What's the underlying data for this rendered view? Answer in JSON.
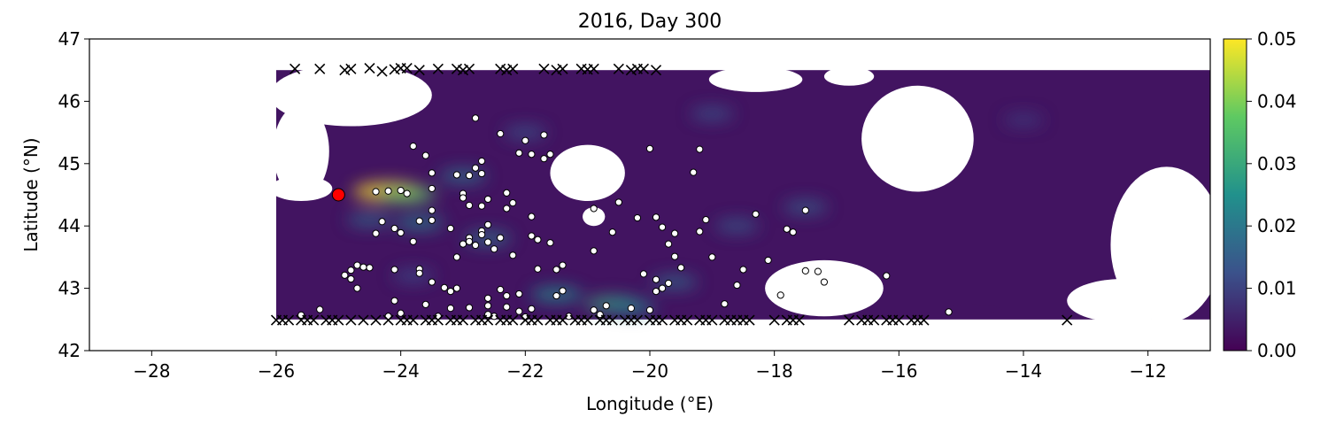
{
  "chart_data": {
    "type": "heatmap",
    "title": "2016, Day 300",
    "xlabel": "Longitude (°E)",
    "ylabel": "Latitude (°N)",
    "xlim": [
      -29,
      -11
    ],
    "ylim": [
      42,
      47
    ],
    "x_ticks": [
      -28,
      -26,
      -24,
      -22,
      -20,
      -18,
      -16,
      -14,
      -12
    ],
    "x_tick_labels": [
      "−28",
      "−26",
      "−24",
      "−22",
      "−20",
      "−18",
      "−16",
      "−14",
      "−12"
    ],
    "y_ticks": [
      42,
      43,
      44,
      45,
      46,
      47
    ],
    "y_tick_labels": [
      "42",
      "43",
      "44",
      "45",
      "46",
      "47"
    ],
    "colorbar": {
      "min": 0.0,
      "max": 0.05,
      "ticks": [
        0.0,
        0.01,
        0.02,
        0.03,
        0.04,
        0.05
      ],
      "tick_labels": [
        "0.00",
        "0.01",
        "0.02",
        "0.03",
        "0.04",
        "0.05"
      ],
      "colormap": "viridis",
      "colors": [
        "#440154",
        "#3b528b",
        "#21918c",
        "#5ec962",
        "#fde725"
      ]
    },
    "field_region": {
      "lon_range": [
        -26.0,
        -11.0
      ],
      "lat_range": [
        42.5,
        46.5
      ],
      "background_value": 0.003,
      "missing_color": "#ffffff"
    },
    "field_features": [
      {
        "lon": -24.2,
        "lat": 44.55,
        "value": 0.05
      },
      {
        "lon": -23.9,
        "lat": 44.5,
        "value": 0.035
      },
      {
        "lon": -24.5,
        "lat": 44.1,
        "value": 0.018
      },
      {
        "lon": -23.7,
        "lat": 44.05,
        "value": 0.022
      },
      {
        "lon": -23.0,
        "lat": 44.8,
        "value": 0.02
      },
      {
        "lon": -22.6,
        "lat": 43.8,
        "value": 0.02
      },
      {
        "lon": -23.8,
        "lat": 43.2,
        "value": 0.012
      },
      {
        "lon": -21.5,
        "lat": 42.9,
        "value": 0.025
      },
      {
        "lon": -20.6,
        "lat": 42.75,
        "value": 0.03
      },
      {
        "lon": -20.3,
        "lat": 42.7,
        "value": 0.022
      },
      {
        "lon": -19.6,
        "lat": 43.1,
        "value": 0.018
      },
      {
        "lon": -18.6,
        "lat": 44.0,
        "value": 0.015
      },
      {
        "lon": -17.5,
        "lat": 44.3,
        "value": 0.016
      },
      {
        "lon": -19.0,
        "lat": 45.8,
        "value": 0.014
      },
      {
        "lon": -14.0,
        "lat": 45.7,
        "value": 0.01
      },
      {
        "lon": -22.0,
        "lat": 45.5,
        "value": 0.014
      }
    ],
    "masked_regions": [
      {
        "lon": -21.0,
        "lat": 44.85,
        "rx": 0.6,
        "ry": 0.45
      },
      {
        "lon": -20.9,
        "lat": 44.15,
        "rx": 0.18,
        "ry": 0.15
      },
      {
        "lon": -17.2,
        "lat": 43.0,
        "rx": 0.95,
        "ry": 0.45
      },
      {
        "lon": -15.7,
        "lat": 45.4,
        "rx": 0.9,
        "ry": 0.85
      },
      {
        "lon": -18.3,
        "lat": 46.35,
        "rx": 0.75,
        "ry": 0.2
      },
      {
        "lon": -16.8,
        "lat": 46.4,
        "rx": 0.4,
        "ry": 0.15
      },
      {
        "lon": -24.8,
        "lat": 46.1,
        "rx": 1.3,
        "ry": 0.5
      },
      {
        "lon": -25.6,
        "lat": 45.2,
        "rx": 0.45,
        "ry": 0.75
      },
      {
        "lon": -25.6,
        "lat": 44.6,
        "rx": 0.5,
        "ry": 0.2
      },
      {
        "lon": -11.7,
        "lat": 43.7,
        "rx": 0.9,
        "ry": 1.25
      },
      {
        "lon": -12.4,
        "lat": 42.8,
        "rx": 0.9,
        "ry": 0.35
      }
    ],
    "extra_patches": [
      {
        "lon": -14.8,
        "lat": 42.66,
        "rx": 0.45,
        "ry": 0.08
      }
    ],
    "series": [
      {
        "marker": "circle",
        "color": "#ffffff",
        "edge": "#000000",
        "points": [
          [
            -22.8,
            45.73
          ],
          [
            -22.4,
            45.48
          ],
          [
            -21.7,
            45.46
          ],
          [
            -23.8,
            45.28
          ],
          [
            -22.0,
            45.37
          ],
          [
            -22.1,
            45.17
          ],
          [
            -21.9,
            45.15
          ],
          [
            -21.6,
            45.15
          ],
          [
            -21.7,
            45.08
          ],
          [
            -23.6,
            45.13
          ],
          [
            -20.0,
            45.24
          ],
          [
            -19.2,
            45.23
          ],
          [
            -22.7,
            45.04
          ],
          [
            -22.8,
            44.93
          ],
          [
            -22.7,
            44.84
          ],
          [
            -23.5,
            44.85
          ],
          [
            -23.1,
            44.82
          ],
          [
            -22.9,
            44.81
          ],
          [
            -19.3,
            44.86
          ],
          [
            -23.5,
            44.6
          ],
          [
            -23.0,
            44.52
          ],
          [
            -22.3,
            44.53
          ],
          [
            -24.0,
            44.57
          ],
          [
            -24.2,
            44.56
          ],
          [
            -24.4,
            44.55
          ],
          [
            -23.9,
            44.52
          ],
          [
            -23.0,
            44.45
          ],
          [
            -22.6,
            44.43
          ],
          [
            -22.2,
            44.37
          ],
          [
            -22.9,
            44.33
          ],
          [
            -22.7,
            44.32
          ],
          [
            -23.5,
            44.25
          ],
          [
            -20.5,
            44.38
          ],
          [
            -20.9,
            44.28
          ],
          [
            -22.3,
            44.28
          ],
          [
            -19.1,
            44.1
          ],
          [
            -23.7,
            44.08
          ],
          [
            -23.5,
            44.09
          ],
          [
            -22.6,
            44.02
          ],
          [
            -23.2,
            43.96
          ],
          [
            -22.7,
            43.92
          ],
          [
            -21.9,
            44.15
          ],
          [
            -19.9,
            44.14
          ],
          [
            -20.2,
            44.13
          ],
          [
            -24.3,
            44.07
          ],
          [
            -22.7,
            43.86
          ],
          [
            -22.9,
            43.81
          ],
          [
            -22.9,
            43.75
          ],
          [
            -22.4,
            43.81
          ],
          [
            -22.6,
            43.74
          ],
          [
            -22.8,
            43.69
          ],
          [
            -21.9,
            43.84
          ],
          [
            -21.8,
            43.78
          ],
          [
            -24.1,
            43.96
          ],
          [
            -24.0,
            43.89
          ],
          [
            -24.4,
            43.88
          ],
          [
            -23.8,
            43.75
          ],
          [
            -22.2,
            43.53
          ],
          [
            -23.0,
            43.71
          ],
          [
            -22.5,
            43.63
          ],
          [
            -23.1,
            43.5
          ],
          [
            -21.6,
            43.73
          ],
          [
            -20.6,
            43.9
          ],
          [
            -19.7,
            43.71
          ],
          [
            -19.2,
            43.91
          ],
          [
            -19.8,
            43.98
          ],
          [
            -19.6,
            43.88
          ],
          [
            -20.9,
            43.6
          ],
          [
            -17.7,
            43.9
          ],
          [
            -17.8,
            43.95
          ],
          [
            -18.1,
            43.45
          ],
          [
            -19.0,
            43.5
          ],
          [
            -19.6,
            43.51
          ],
          [
            -18.5,
            43.3
          ],
          [
            -19.5,
            43.33
          ],
          [
            -21.8,
            43.31
          ],
          [
            -21.5,
            43.3
          ],
          [
            -21.4,
            43.37
          ],
          [
            -24.5,
            43.33
          ],
          [
            -24.6,
            43.34
          ],
          [
            -24.7,
            43.37
          ],
          [
            -24.1,
            43.3
          ],
          [
            -23.7,
            43.31
          ],
          [
            -23.7,
            43.24
          ],
          [
            -24.8,
            43.29
          ],
          [
            -24.9,
            43.21
          ],
          [
            -23.5,
            43.1
          ],
          [
            -23.3,
            43.01
          ],
          [
            -23.1,
            43.0
          ],
          [
            -23.2,
            42.95
          ],
          [
            -22.6,
            42.84
          ],
          [
            -22.4,
            42.98
          ],
          [
            -22.1,
            42.91
          ],
          [
            -22.3,
            42.88
          ],
          [
            -21.4,
            42.96
          ],
          [
            -21.5,
            42.88
          ],
          [
            -24.8,
            43.15
          ],
          [
            -24.7,
            43.0
          ],
          [
            -24.1,
            42.8
          ],
          [
            -23.6,
            42.74
          ],
          [
            -23.2,
            42.68
          ],
          [
            -22.9,
            42.69
          ],
          [
            -22.6,
            42.72
          ],
          [
            -22.3,
            42.7
          ],
          [
            -22.1,
            42.63
          ],
          [
            -21.9,
            42.67
          ],
          [
            -22.0,
            42.54
          ],
          [
            -22.6,
            42.58
          ],
          [
            -20.9,
            42.65
          ],
          [
            -20.7,
            42.72
          ],
          [
            -20.3,
            42.68
          ],
          [
            -19.9,
            42.95
          ],
          [
            -19.8,
            43.0
          ],
          [
            -19.7,
            43.08
          ],
          [
            -19.9,
            43.14
          ],
          [
            -20.1,
            43.23
          ],
          [
            -20.0,
            42.65
          ],
          [
            -18.8,
            42.75
          ],
          [
            -17.5,
            43.28
          ],
          [
            -17.3,
            43.27
          ],
          [
            -17.2,
            43.1
          ],
          [
            -17.9,
            42.89
          ],
          [
            -16.2,
            43.2
          ],
          [
            -15.2,
            42.62
          ],
          [
            -24.0,
            42.6
          ],
          [
            -24.2,
            42.55
          ],
          [
            -23.4,
            42.55
          ],
          [
            -22.5,
            42.55
          ],
          [
            -21.3,
            42.55
          ],
          [
            -20.8,
            42.58
          ],
          [
            -18.6,
            43.05
          ],
          [
            -17.5,
            44.25
          ],
          [
            -18.3,
            44.19
          ],
          [
            -25.3,
            42.66
          ],
          [
            -25.6,
            42.57
          ]
        ]
      },
      {
        "marker": "x",
        "color": "#000000",
        "points": [
          [
            -25.7,
            46.52
          ],
          [
            -25.3,
            46.52
          ],
          [
            -24.9,
            46.5
          ],
          [
            -24.8,
            46.52
          ],
          [
            -24.5,
            46.53
          ],
          [
            -24.3,
            46.48
          ],
          [
            -24.0,
            46.53
          ],
          [
            -23.9,
            46.53
          ],
          [
            -23.7,
            46.5
          ],
          [
            -23.4,
            46.52
          ],
          [
            -23.1,
            46.52
          ],
          [
            -22.9,
            46.52
          ],
          [
            -22.4,
            46.52
          ],
          [
            -22.2,
            46.52
          ],
          [
            -21.7,
            46.52
          ],
          [
            -21.4,
            46.52
          ],
          [
            -21.1,
            46.52
          ],
          [
            -20.9,
            46.52
          ],
          [
            -20.5,
            46.52
          ],
          [
            -20.1,
            46.52
          ],
          [
            -19.9,
            46.5
          ],
          [
            -24.1,
            46.51
          ],
          [
            -23.0,
            46.5
          ],
          [
            -22.3,
            46.5
          ],
          [
            -21.5,
            46.5
          ],
          [
            -21.0,
            46.51
          ],
          [
            -20.3,
            46.5
          ],
          [
            -20.2,
            46.52
          ],
          [
            -26.0,
            42.49
          ],
          [
            -25.8,
            42.49
          ],
          [
            -25.6,
            42.49
          ],
          [
            -25.4,
            42.49
          ],
          [
            -25.2,
            42.49
          ],
          [
            -25.0,
            42.49
          ],
          [
            -24.8,
            42.49
          ],
          [
            -24.6,
            42.49
          ],
          [
            -24.4,
            42.49
          ],
          [
            -24.2,
            42.49
          ],
          [
            -24.0,
            42.49
          ],
          [
            -23.8,
            42.49
          ],
          [
            -23.6,
            42.49
          ],
          [
            -23.4,
            42.49
          ],
          [
            -23.2,
            42.49
          ],
          [
            -23.0,
            42.49
          ],
          [
            -22.8,
            42.49
          ],
          [
            -22.6,
            42.49
          ],
          [
            -22.4,
            42.49
          ],
          [
            -22.2,
            42.49
          ],
          [
            -22.0,
            42.49
          ],
          [
            -21.8,
            42.49
          ],
          [
            -21.6,
            42.49
          ],
          [
            -21.4,
            42.49
          ],
          [
            -21.2,
            42.49
          ],
          [
            -21.0,
            42.49
          ],
          [
            -20.8,
            42.49
          ],
          [
            -20.6,
            42.49
          ],
          [
            -20.4,
            42.49
          ],
          [
            -20.2,
            42.49
          ],
          [
            -20.0,
            42.49
          ],
          [
            -19.8,
            42.49
          ],
          [
            -19.6,
            42.49
          ],
          [
            -19.4,
            42.49
          ],
          [
            -19.2,
            42.49
          ],
          [
            -19.0,
            42.49
          ],
          [
            -18.8,
            42.49
          ],
          [
            -18.6,
            42.49
          ],
          [
            -18.4,
            42.49
          ],
          [
            -18.0,
            42.49
          ],
          [
            -17.8,
            42.49
          ],
          [
            -17.6,
            42.49
          ],
          [
            -16.8,
            42.49
          ],
          [
            -16.6,
            42.49
          ],
          [
            -16.4,
            42.49
          ],
          [
            -16.2,
            42.49
          ],
          [
            -16.0,
            42.49
          ],
          [
            -15.8,
            42.49
          ],
          [
            -15.6,
            42.49
          ],
          [
            -13.3,
            42.49
          ],
          [
            -25.9,
            42.49
          ],
          [
            -25.5,
            42.49
          ],
          [
            -25.1,
            42.49
          ],
          [
            -23.9,
            42.49
          ],
          [
            -23.5,
            42.49
          ],
          [
            -23.1,
            42.49
          ],
          [
            -22.7,
            42.49
          ],
          [
            -22.3,
            42.49
          ],
          [
            -21.9,
            42.49
          ],
          [
            -21.5,
            42.49
          ],
          [
            -21.1,
            42.49
          ],
          [
            -20.7,
            42.49
          ],
          [
            -20.3,
            42.49
          ],
          [
            -19.9,
            42.49
          ],
          [
            -19.5,
            42.49
          ],
          [
            -19.1,
            42.49
          ],
          [
            -18.7,
            42.49
          ],
          [
            -18.5,
            42.49
          ],
          [
            -17.7,
            42.49
          ],
          [
            -16.5,
            42.49
          ],
          [
            -16.1,
            42.49
          ],
          [
            -15.7,
            42.49
          ]
        ]
      },
      {
        "marker": "circle",
        "color": "#ff0000",
        "edge": "#000000",
        "points": [
          [
            -25.0,
            44.5
          ]
        ]
      }
    ]
  }
}
